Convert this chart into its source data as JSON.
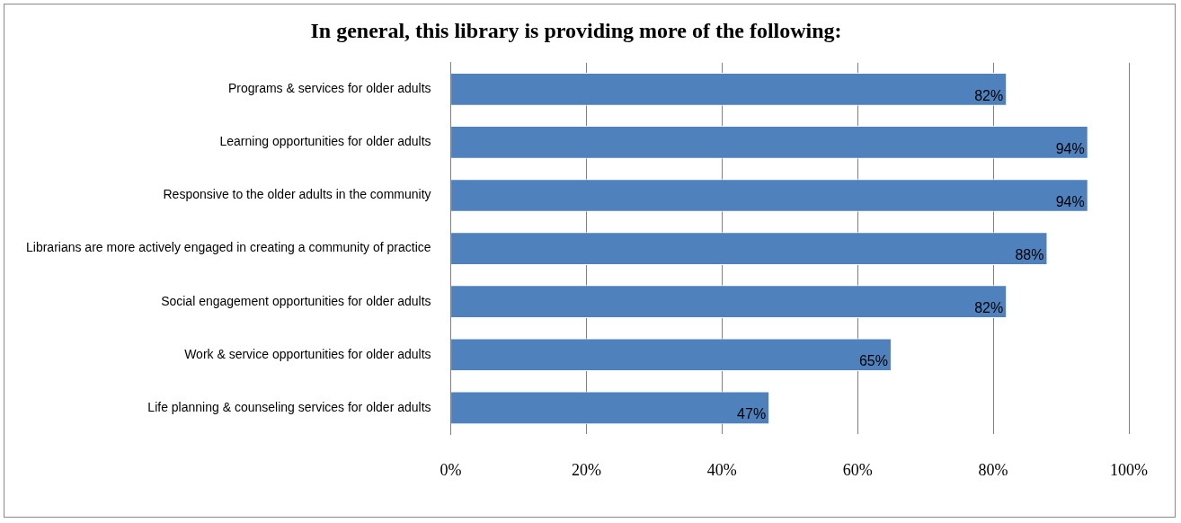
{
  "chart_data": {
    "type": "bar",
    "orientation": "horizontal",
    "title": "In general, this library is providing more of the following:",
    "categories": [
      "Programs & services for older adults",
      "Learning opportunities for older adults",
      "Responsive to the older adults in the community",
      "Librarians are more actively engaged in creating a community of practice",
      "Social engagement opportunities for older adults",
      "Work & service opportunities for older adults",
      "Life planning & counseling services for older adults"
    ],
    "values": [
      82,
      94,
      94,
      88,
      82,
      65,
      47
    ],
    "value_labels": [
      "82%",
      "94%",
      "94%",
      "88%",
      "82%",
      "65%",
      "47%"
    ],
    "color": "#4f81bd",
    "xlim": [
      0,
      100
    ],
    "xticks": [
      {
        "value": 0,
        "label": "0%"
      },
      {
        "value": 20,
        "label": "20%"
      },
      {
        "value": 40,
        "label": "40%"
      },
      {
        "value": 60,
        "label": "60%"
      },
      {
        "value": 80,
        "label": "80%"
      },
      {
        "value": 100,
        "label": "100%"
      }
    ],
    "grid": "x",
    "legend": false
  }
}
